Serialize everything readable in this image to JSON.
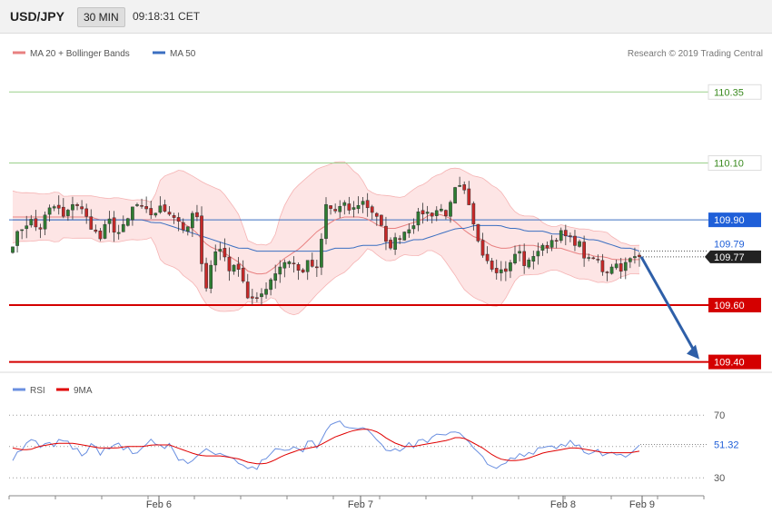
{
  "header": {
    "symbol": "USD/JPY",
    "timeframe": "30 MIN",
    "time": "09:18:31 CET"
  },
  "legend": {
    "ma20_bb": "MA 20 + Bollinger Bands",
    "ma50": "MA 50",
    "research": "Research © 2019 Trading Central"
  },
  "colors": {
    "up": "#2e7d32",
    "down": "#c62828",
    "band_fill": "#fde1e1",
    "ma20": "#e88080",
    "ma50": "#3b6fc1",
    "resistance": "#9ad08a",
    "support": "#d40000",
    "pivot": "#3b6fc1",
    "rsi": "#6a8fe0",
    "rsi_ma": "#e00000",
    "arrow": "#2e5fa8"
  },
  "chart_data": [
    {
      "type": "candlestick",
      "x_ticks": [
        "Feb 6",
        "Feb 7",
        "Feb 8",
        "Feb 9"
      ],
      "levels": [
        {
          "value": 110.35,
          "label": "110.35",
          "kind": "resistance"
        },
        {
          "value": 110.1,
          "label": "110.10",
          "kind": "resistance"
        },
        {
          "value": 109.9,
          "label": "109.90",
          "kind": "pivot"
        },
        {
          "value": 109.6,
          "label": "109.60",
          "kind": "support"
        },
        {
          "value": 109.4,
          "label": "109.40",
          "kind": "support"
        }
      ],
      "current_price_label": "109.77",
      "last_value_label": "109.79",
      "ylim": [
        109.37,
        110.45
      ],
      "arrow": {
        "from": 109.77,
        "to": 109.4
      },
      "close_path": [
        109.82,
        109.87,
        109.9,
        109.86,
        109.93,
        109.95,
        109.9,
        109.97,
        109.93,
        109.88,
        109.83,
        109.9,
        109.85,
        109.88,
        109.96,
        109.93,
        109.92,
        109.94,
        109.93,
        109.9,
        109.85,
        109.96,
        109.64,
        109.78,
        109.8,
        109.72,
        109.74,
        109.63,
        109.61,
        109.66,
        109.71,
        109.75,
        109.76,
        109.71,
        109.75,
        109.72,
        109.95,
        109.93,
        109.95,
        109.93,
        109.97,
        109.94,
        109.91,
        109.8,
        109.83,
        109.86,
        109.89,
        109.93,
        109.92,
        109.94,
        109.92,
        110.02,
        109.99,
        109.87,
        109.79,
        109.74,
        109.72,
        109.73,
        109.8,
        109.73,
        109.79,
        109.8,
        109.83,
        109.85,
        109.83,
        109.82,
        109.75,
        109.77,
        109.71,
        109.75,
        109.73,
        109.76,
        109.77
      ],
      "ma20": [
        109.91,
        109.91,
        109.91,
        109.91,
        109.91,
        109.91,
        109.91,
        109.91,
        109.91,
        109.91,
        109.9,
        109.9,
        109.9,
        109.9,
        109.9,
        109.9,
        109.9,
        109.9,
        109.9,
        109.9,
        109.88,
        109.86,
        109.82,
        109.8,
        109.79,
        109.77,
        109.75,
        109.72,
        109.71,
        109.71,
        109.73,
        109.76,
        109.78,
        109.8,
        109.83,
        109.86,
        109.88,
        109.9,
        109.91,
        109.91,
        109.91,
        109.9,
        109.88,
        109.87,
        109.87,
        109.88,
        109.89,
        109.9,
        109.92,
        109.92,
        109.91,
        109.89,
        109.86,
        109.84,
        109.83,
        109.81,
        109.8,
        109.8,
        109.81,
        109.81,
        109.81,
        109.8,
        109.8,
        109.8,
        109.79,
        109.78,
        109.78,
        109.77,
        109.77,
        109.76,
        109.76,
        109.76,
        109.76
      ],
      "ma50": [
        109.9,
        109.9,
        109.9,
        109.9,
        109.9,
        109.9,
        109.9,
        109.9,
        109.9,
        109.9,
        109.9,
        109.9,
        109.9,
        109.9,
        109.9,
        109.9,
        109.89,
        109.89,
        109.88,
        109.87,
        109.86,
        109.85,
        109.84,
        109.83,
        109.82,
        109.81,
        109.8,
        109.8,
        109.79,
        109.79,
        109.79,
        109.79,
        109.79,
        109.79,
        109.79,
        109.79,
        109.79,
        109.8,
        109.8,
        109.8,
        109.81,
        109.81,
        109.81,
        109.82,
        109.82,
        109.82,
        109.83,
        109.83,
        109.84,
        109.85,
        109.86,
        109.87,
        109.87,
        109.88,
        109.88,
        109.88,
        109.88,
        109.87,
        109.87,
        109.86,
        109.86,
        109.86,
        109.85,
        109.85,
        109.84,
        109.84,
        109.83,
        109.83,
        109.82,
        109.81,
        109.8,
        109.8,
        109.79
      ]
    },
    {
      "type": "line",
      "legend": [
        "RSI",
        "9MA"
      ],
      "ylim": [
        22,
        80
      ],
      "y_ticks": [
        70,
        50,
        30
      ],
      "tick_labels": [
        "70",
        "",
        "30"
      ],
      "last_value_label": "51.32",
      "last_value": 51.32,
      "rsi": [
        43,
        46,
        55,
        50,
        51,
        52,
        55,
        49,
        45,
        51,
        46,
        48,
        52,
        49,
        45,
        48,
        54,
        49,
        50,
        41,
        40,
        43,
        48,
        46,
        45,
        43,
        38,
        36,
        37,
        43,
        48,
        47,
        49,
        46,
        53,
        50,
        61,
        65,
        64,
        63,
        62,
        60,
        55,
        47,
        48,
        50,
        51,
        53,
        54,
        57,
        56,
        60,
        55,
        47,
        45,
        35,
        40,
        42,
        43,
        46,
        47,
        49,
        51,
        50,
        52,
        51,
        44,
        48,
        43,
        46,
        44,
        47,
        51
      ],
      "ma9": [
        49,
        48,
        48,
        50,
        51,
        52,
        52,
        52,
        51,
        50,
        49,
        49,
        49,
        50,
        50,
        50,
        51,
        51,
        51,
        49,
        47,
        45,
        44,
        44,
        44,
        43,
        42,
        40,
        39,
        39,
        41,
        44,
        46,
        48,
        49,
        50,
        53,
        56,
        58,
        60,
        61,
        61,
        59,
        55,
        52,
        50,
        50,
        51,
        52,
        53,
        54,
        56,
        55,
        52,
        49,
        45,
        42,
        41,
        41,
        42,
        44,
        46,
        47,
        48,
        49,
        49,
        48,
        47,
        46,
        46,
        46,
        46,
        47
      ]
    }
  ]
}
